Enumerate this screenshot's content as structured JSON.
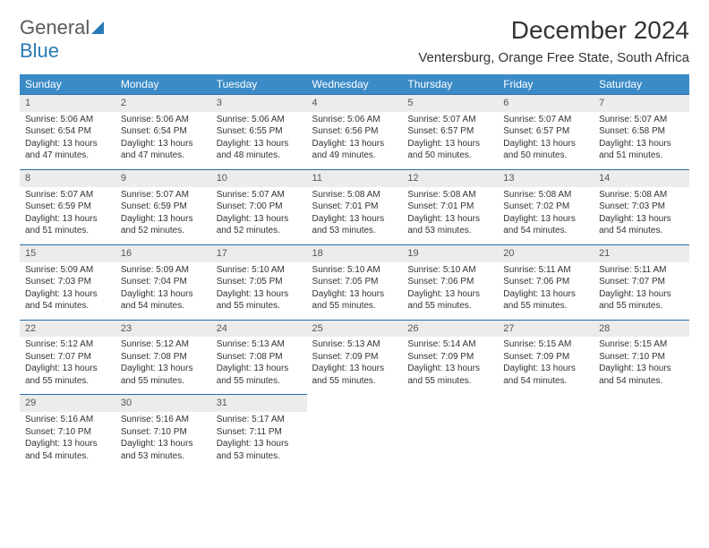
{
  "logo": {
    "line1": "General",
    "line2": "Blue"
  },
  "title": "December 2024",
  "location": "Ventersburg, Orange Free State, South Africa",
  "weekday_header_bg": "#3b8bc7",
  "weekday_header_fg": "#ffffff",
  "daynum_band_bg": "#ececec",
  "row_border_color": "#2a6fa8",
  "weekdays": [
    "Sunday",
    "Monday",
    "Tuesday",
    "Wednesday",
    "Thursday",
    "Friday",
    "Saturday"
  ],
  "weeks": [
    [
      {
        "n": "1",
        "sr": "Sunrise: 5:06 AM",
        "ss": "Sunset: 6:54 PM",
        "dl": "Daylight: 13 hours and 47 minutes."
      },
      {
        "n": "2",
        "sr": "Sunrise: 5:06 AM",
        "ss": "Sunset: 6:54 PM",
        "dl": "Daylight: 13 hours and 47 minutes."
      },
      {
        "n": "3",
        "sr": "Sunrise: 5:06 AM",
        "ss": "Sunset: 6:55 PM",
        "dl": "Daylight: 13 hours and 48 minutes."
      },
      {
        "n": "4",
        "sr": "Sunrise: 5:06 AM",
        "ss": "Sunset: 6:56 PM",
        "dl": "Daylight: 13 hours and 49 minutes."
      },
      {
        "n": "5",
        "sr": "Sunrise: 5:07 AM",
        "ss": "Sunset: 6:57 PM",
        "dl": "Daylight: 13 hours and 50 minutes."
      },
      {
        "n": "6",
        "sr": "Sunrise: 5:07 AM",
        "ss": "Sunset: 6:57 PM",
        "dl": "Daylight: 13 hours and 50 minutes."
      },
      {
        "n": "7",
        "sr": "Sunrise: 5:07 AM",
        "ss": "Sunset: 6:58 PM",
        "dl": "Daylight: 13 hours and 51 minutes."
      }
    ],
    [
      {
        "n": "8",
        "sr": "Sunrise: 5:07 AM",
        "ss": "Sunset: 6:59 PM",
        "dl": "Daylight: 13 hours and 51 minutes."
      },
      {
        "n": "9",
        "sr": "Sunrise: 5:07 AM",
        "ss": "Sunset: 6:59 PM",
        "dl": "Daylight: 13 hours and 52 minutes."
      },
      {
        "n": "10",
        "sr": "Sunrise: 5:07 AM",
        "ss": "Sunset: 7:00 PM",
        "dl": "Daylight: 13 hours and 52 minutes."
      },
      {
        "n": "11",
        "sr": "Sunrise: 5:08 AM",
        "ss": "Sunset: 7:01 PM",
        "dl": "Daylight: 13 hours and 53 minutes."
      },
      {
        "n": "12",
        "sr": "Sunrise: 5:08 AM",
        "ss": "Sunset: 7:01 PM",
        "dl": "Daylight: 13 hours and 53 minutes."
      },
      {
        "n": "13",
        "sr": "Sunrise: 5:08 AM",
        "ss": "Sunset: 7:02 PM",
        "dl": "Daylight: 13 hours and 54 minutes."
      },
      {
        "n": "14",
        "sr": "Sunrise: 5:08 AM",
        "ss": "Sunset: 7:03 PM",
        "dl": "Daylight: 13 hours and 54 minutes."
      }
    ],
    [
      {
        "n": "15",
        "sr": "Sunrise: 5:09 AM",
        "ss": "Sunset: 7:03 PM",
        "dl": "Daylight: 13 hours and 54 minutes."
      },
      {
        "n": "16",
        "sr": "Sunrise: 5:09 AM",
        "ss": "Sunset: 7:04 PM",
        "dl": "Daylight: 13 hours and 54 minutes."
      },
      {
        "n": "17",
        "sr": "Sunrise: 5:10 AM",
        "ss": "Sunset: 7:05 PM",
        "dl": "Daylight: 13 hours and 55 minutes."
      },
      {
        "n": "18",
        "sr": "Sunrise: 5:10 AM",
        "ss": "Sunset: 7:05 PM",
        "dl": "Daylight: 13 hours and 55 minutes."
      },
      {
        "n": "19",
        "sr": "Sunrise: 5:10 AM",
        "ss": "Sunset: 7:06 PM",
        "dl": "Daylight: 13 hours and 55 minutes."
      },
      {
        "n": "20",
        "sr": "Sunrise: 5:11 AM",
        "ss": "Sunset: 7:06 PM",
        "dl": "Daylight: 13 hours and 55 minutes."
      },
      {
        "n": "21",
        "sr": "Sunrise: 5:11 AM",
        "ss": "Sunset: 7:07 PM",
        "dl": "Daylight: 13 hours and 55 minutes."
      }
    ],
    [
      {
        "n": "22",
        "sr": "Sunrise: 5:12 AM",
        "ss": "Sunset: 7:07 PM",
        "dl": "Daylight: 13 hours and 55 minutes."
      },
      {
        "n": "23",
        "sr": "Sunrise: 5:12 AM",
        "ss": "Sunset: 7:08 PM",
        "dl": "Daylight: 13 hours and 55 minutes."
      },
      {
        "n": "24",
        "sr": "Sunrise: 5:13 AM",
        "ss": "Sunset: 7:08 PM",
        "dl": "Daylight: 13 hours and 55 minutes."
      },
      {
        "n": "25",
        "sr": "Sunrise: 5:13 AM",
        "ss": "Sunset: 7:09 PM",
        "dl": "Daylight: 13 hours and 55 minutes."
      },
      {
        "n": "26",
        "sr": "Sunrise: 5:14 AM",
        "ss": "Sunset: 7:09 PM",
        "dl": "Daylight: 13 hours and 55 minutes."
      },
      {
        "n": "27",
        "sr": "Sunrise: 5:15 AM",
        "ss": "Sunset: 7:09 PM",
        "dl": "Daylight: 13 hours and 54 minutes."
      },
      {
        "n": "28",
        "sr": "Sunrise: 5:15 AM",
        "ss": "Sunset: 7:10 PM",
        "dl": "Daylight: 13 hours and 54 minutes."
      }
    ],
    [
      {
        "n": "29",
        "sr": "Sunrise: 5:16 AM",
        "ss": "Sunset: 7:10 PM",
        "dl": "Daylight: 13 hours and 54 minutes."
      },
      {
        "n": "30",
        "sr": "Sunrise: 5:16 AM",
        "ss": "Sunset: 7:10 PM",
        "dl": "Daylight: 13 hours and 53 minutes."
      },
      {
        "n": "31",
        "sr": "Sunrise: 5:17 AM",
        "ss": "Sunset: 7:11 PM",
        "dl": "Daylight: 13 hours and 53 minutes."
      },
      null,
      null,
      null,
      null
    ]
  ]
}
